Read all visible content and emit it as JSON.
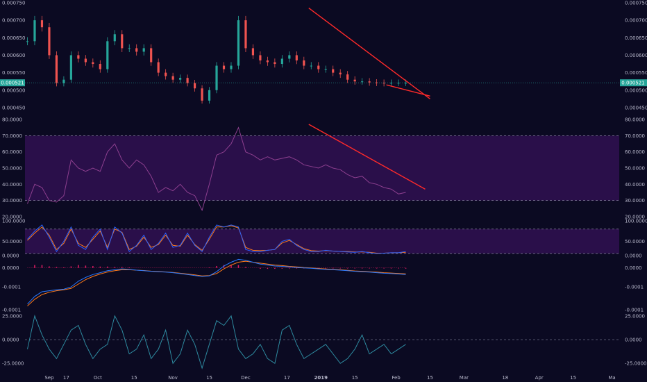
{
  "colors": {
    "background": "#0b0a22",
    "candle_up": "#26a69a",
    "candle_down": "#ef5350",
    "trendline": "#ff2a2a",
    "rsi_line": "#8d3f8f",
    "rsi_band": "#2a0f4a",
    "stoch_k": "#2962ff",
    "stoch_d": "#ff7a1a",
    "macd_line": "#2979ff",
    "signal_line": "#ff7a1a",
    "histogram": "#d81b60",
    "osc_line": "#2e8ba0",
    "price_line": "#26a69a",
    "axis_text": "#b9b9cc"
  },
  "time_axis": {
    "labels": [
      {
        "text": "Sep",
        "bold": false,
        "day": 10
      },
      {
        "text": "17",
        "bold": false,
        "day": 17
      },
      {
        "text": "Oct",
        "bold": false,
        "day": 30
      },
      {
        "text": "15",
        "bold": false,
        "day": 45
      },
      {
        "text": "Nov",
        "bold": false,
        "day": 61
      },
      {
        "text": "15",
        "bold": false,
        "day": 76
      },
      {
        "text": "Dec",
        "bold": false,
        "day": 91
      },
      {
        "text": "17",
        "bold": false,
        "day": 108
      },
      {
        "text": "2019",
        "bold": true,
        "day": 122
      },
      {
        "text": "15",
        "bold": false,
        "day": 136
      },
      {
        "text": "Feb",
        "bold": false,
        "day": 153
      },
      {
        "text": "15",
        "bold": false,
        "day": 167
      },
      {
        "text": "Mar",
        "bold": false,
        "day": 181
      },
      {
        "text": "18",
        "bold": false,
        "day": 198
      },
      {
        "text": "Apr",
        "bold": false,
        "day": 212
      },
      {
        "text": "15",
        "bold": false,
        "day": 226
      },
      {
        "text": "Ma",
        "bold": false,
        "day": 242
      }
    ]
  },
  "chart_data": [
    {
      "type": "candlestick",
      "title": "",
      "ylim": [
        0.00043,
        0.00075
      ],
      "y_ticks": [
        "0.000750",
        "0.000700",
        "0.000650",
        "0.000600",
        "0.000550",
        "0.000500",
        "0.000450"
      ],
      "current_price_label": "0.000521",
      "current_price": 0.000521,
      "x": [
        1,
        4,
        7,
        10,
        13,
        16,
        19,
        22,
        25,
        28,
        31,
        34,
        37,
        40,
        43,
        46,
        49,
        52,
        55,
        58,
        61,
        64,
        67,
        70,
        73,
        76,
        79,
        82,
        85,
        88,
        91,
        94,
        97,
        100,
        103,
        106,
        109,
        112,
        115,
        118,
        121,
        124,
        127,
        130,
        133,
        136,
        139,
        142,
        145,
        148,
        151,
        154,
        157
      ],
      "close": [
        0.00064,
        0.0007,
        0.00068,
        0.0006,
        0.00052,
        0.00053,
        0.0006,
        0.00059,
        0.00058,
        0.000575,
        0.00056,
        0.00064,
        0.00066,
        0.00062,
        0.00062,
        0.00061,
        0.00062,
        0.00058,
        0.00055,
        0.00054,
        0.00053,
        0.000535,
        0.00052,
        0.000505,
        0.00047,
        0.0005,
        0.00057,
        0.00056,
        0.00057,
        0.0007,
        0.00062,
        0.0006,
        0.000585,
        0.00058,
        0.000575,
        0.00059,
        0.0006,
        0.000585,
        0.00057,
        0.00057,
        0.00056,
        0.00056,
        0.00055,
        0.000545,
        0.00053,
        0.000525,
        0.000525,
        0.000522,
        0.000521,
        0.00052,
        0.000521,
        0.000521,
        0.000521
      ],
      "trendline_upper": {
        "from": [
          117,
          0.000735
        ],
        "to": [
          167,
          0.000475
        ]
      },
      "trendline_lower": {
        "from": [
          149,
          0.000515
        ],
        "to": [
          167,
          0.000483
        ]
      }
    },
    {
      "type": "line",
      "name": "",
      "ylim": [
        20,
        80
      ],
      "y_ticks": [
        "80.0000",
        "70.0000",
        "60.0000",
        "50.0000",
        "40.0000",
        "30.0000",
        "20.0000"
      ],
      "band": [
        30,
        70
      ],
      "x": [
        1,
        4,
        7,
        10,
        13,
        16,
        19,
        22,
        25,
        28,
        31,
        34,
        37,
        40,
        43,
        46,
        49,
        52,
        55,
        58,
        61,
        64,
        67,
        70,
        73,
        76,
        79,
        82,
        85,
        88,
        91,
        94,
        97,
        100,
        103,
        106,
        109,
        112,
        115,
        118,
        121,
        124,
        127,
        130,
        133,
        136,
        139,
        142,
        145,
        148,
        151,
        154,
        157
      ],
      "values": [
        28,
        40,
        38,
        30,
        29,
        33,
        55,
        50,
        48,
        50,
        48,
        60,
        65,
        55,
        50,
        55,
        52,
        45,
        35,
        38,
        36,
        40,
        35,
        33,
        24,
        40,
        58,
        60,
        65,
        75,
        60,
        58,
        55,
        57,
        55,
        56,
        57,
        55,
        52,
        51,
        50,
        52,
        50,
        49,
        46,
        44,
        45,
        41,
        40,
        38,
        37,
        34,
        35
      ],
      "trendline": {
        "from": [
          117,
          77
        ],
        "to": [
          165,
          37
        ]
      }
    },
    {
      "type": "line",
      "ylim": [
        15,
        100
      ],
      "y_ticks": [
        "100.0000",
        "50.0000",
        "0.0000"
      ],
      "band": [
        20,
        80
      ],
      "x": [
        1,
        4,
        7,
        10,
        13,
        16,
        19,
        22,
        25,
        28,
        31,
        34,
        37,
        40,
        43,
        46,
        49,
        52,
        55,
        58,
        61,
        64,
        67,
        70,
        73,
        76,
        79,
        82,
        85,
        88,
        91,
        94,
        97,
        100,
        103,
        106,
        109,
        112,
        115,
        118,
        121,
        124,
        127,
        130,
        133,
        136,
        139,
        142,
        145,
        148,
        151,
        154,
        157
      ],
      "series": [
        {
          "values": [
            55,
            75,
            90,
            60,
            25,
            50,
            85,
            40,
            30,
            60,
            80,
            30,
            85,
            70,
            25,
            40,
            65,
            30,
            45,
            70,
            35,
            40,
            70,
            40,
            25,
            60,
            90,
            85,
            90,
            85,
            30,
            25,
            25,
            28,
            30,
            50,
            55,
            40,
            30,
            25,
            25,
            28,
            26,
            25,
            24,
            23,
            25,
            22,
            20,
            21,
            22,
            22,
            25
          ]
        },
        {
          "values": [
            52,
            70,
            85,
            65,
            30,
            45,
            80,
            45,
            35,
            55,
            75,
            35,
            80,
            72,
            30,
            38,
            60,
            35,
            42,
            65,
            40,
            38,
            65,
            42,
            28,
            55,
            85,
            85,
            88,
            83,
            35,
            28,
            27,
            28,
            30,
            46,
            52,
            42,
            32,
            27,
            26,
            27,
            26,
            25,
            25,
            24,
            24,
            23,
            21,
            21,
            22,
            22,
            23
          ]
        }
      ]
    },
    {
      "type": "line",
      "ylim": [
        -0.00022,
        5e-05
      ],
      "y_ticks": [
        "0.0000",
        "-0.0001",
        "-0.0001"
      ],
      "x": [
        1,
        4,
        7,
        10,
        13,
        16,
        19,
        22,
        25,
        28,
        31,
        34,
        37,
        40,
        43,
        46,
        49,
        52,
        55,
        58,
        61,
        64,
        67,
        70,
        73,
        76,
        79,
        82,
        85,
        88,
        91,
        94,
        97,
        100,
        103,
        106,
        109,
        112,
        115,
        118,
        121,
        124,
        127,
        130,
        133,
        136,
        139,
        142,
        145,
        148,
        151,
        154,
        157
      ],
      "series": [
        {
          "values": [
            -0.00019,
            -0.00015,
            -0.000125,
            -0.00012,
            -0.000115,
            -0.000112,
            -0.0001,
            -7e-05,
            -5e-05,
            -3.5e-05,
            -2.5e-05,
            -1.5e-05,
            -1e-05,
            -5e-06,
            -8e-06,
            -1.2e-05,
            -1.5e-05,
            -1.8e-05,
            -2e-05,
            -2.2e-05,
            -2.5e-05,
            -3e-05,
            -3.5e-05,
            -4e-05,
            -4.5e-05,
            -4.2e-05,
            -2e-05,
            1e-05,
            3e-05,
            4.5e-05,
            4e-05,
            3e-05,
            2e-05,
            1.5e-05,
            1e-05,
            8e-06,
            5e-06,
            2e-06,
            0.0,
            -2e-06,
            -5e-06,
            -8e-06,
            -1e-05,
            -1.2e-05,
            -1.5e-05,
            -1.8e-05,
            -2e-05,
            -2.2e-05,
            -2.5e-05,
            -2.8e-05,
            -3e-05,
            -3.2e-05,
            -3.5e-05
          ]
        },
        {
          "values": [
            -0.0002,
            -0.000165,
            -0.00014,
            -0.000128,
            -0.00012,
            -0.000115,
            -0.000108,
            -8.5e-05,
            -6.2e-05,
            -4.5e-05,
            -3.2e-05,
            -2.2e-05,
            -1.5e-05,
            -1e-05,
            -1e-05,
            -1.2e-05,
            -1.4e-05,
            -1.7e-05,
            -1.9e-05,
            -2.1e-05,
            -2.4e-05,
            -2.8e-05,
            -3.2e-05,
            -3.7e-05,
            -4.2e-05,
            -4e-05,
            -3e-05,
            -5e-06,
            1.5e-05,
            3e-05,
            3.5e-05,
            3e-05,
            2.5e-05,
            2e-05,
            1.5e-05,
            1.2e-05,
            8e-06,
            5e-06,
            2e-06,
            0.0,
            -3e-06,
            -6e-06,
            -8e-06,
            -1e-05,
            -1.3e-05,
            -1.6e-05,
            -1.8e-05,
            -2e-05,
            -2.2e-05,
            -2.5e-05,
            -2.7e-05,
            -2.9e-05,
            -3.1e-05
          ]
        }
      ],
      "histogram": [
        0,
        1.5e-05,
        1.5e-05,
        8e-06,
        5e-06,
        3e-06,
        8e-06,
        1.5e-05,
        1.2e-05,
        1e-05,
        7e-06,
        7e-06,
        5e-06,
        5e-06,
        2e-06,
        0,
        0,
        0,
        0,
        0,
        0,
        0,
        0,
        0,
        0,
        2e-06,
        1e-05,
        1.5e-05,
        1.5e-05,
        1.5e-05,
        5e-06,
        0,
        -5e-06,
        -5e-06,
        -5e-06,
        -4e-06,
        -3e-06,
        -3e-06,
        -2e-06,
        -2e-06,
        -2e-06,
        -2e-06,
        -2e-06,
        -2e-06,
        -2e-06,
        -2e-06,
        -2e-06,
        -2e-06,
        -3e-06,
        -3e-06,
        -3e-06,
        -3e-06,
        -4e-06
      ]
    },
    {
      "type": "line",
      "ylim": [
        -30,
        30
      ],
      "y_ticks": [
        "25.0000",
        "0.0000",
        "-25.0000"
      ],
      "x": [
        1,
        4,
        7,
        10,
        13,
        16,
        19,
        22,
        25,
        28,
        31,
        34,
        37,
        40,
        43,
        46,
        49,
        52,
        55,
        58,
        61,
        64,
        67,
        70,
        73,
        76,
        79,
        82,
        85,
        88,
        91,
        94,
        97,
        100,
        103,
        106,
        109,
        112,
        115,
        118,
        121,
        124,
        127,
        130,
        133,
        136,
        139,
        142,
        145,
        148,
        151,
        154,
        157
      ],
      "values": [
        -10,
        25,
        5,
        -10,
        -20,
        -5,
        10,
        15,
        -5,
        -20,
        -10,
        -5,
        25,
        10,
        -15,
        -10,
        5,
        -20,
        -10,
        10,
        -25,
        -15,
        10,
        -5,
        -30,
        -5,
        20,
        15,
        25,
        -10,
        -20,
        -15,
        -5,
        -20,
        -25,
        10,
        15,
        -5,
        -20,
        -15,
        -10,
        -5,
        -15,
        -25,
        -20,
        -10,
        5,
        -15,
        -10,
        -5,
        -15,
        -10,
        -5
      ]
    }
  ]
}
